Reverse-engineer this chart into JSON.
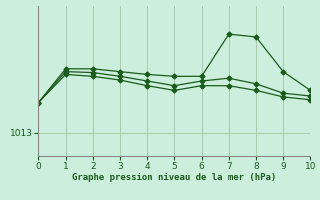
{
  "x": [
    0,
    1,
    2,
    3,
    4,
    5,
    6,
    7,
    8,
    9,
    10
  ],
  "line1": [
    1016.2,
    1019.8,
    1019.8,
    1019.5,
    1019.2,
    1019.0,
    1019.0,
    1023.5,
    1023.2,
    1019.5,
    1017.5
  ],
  "line2": [
    1016.2,
    1019.5,
    1019.4,
    1019.0,
    1018.5,
    1018.0,
    1018.5,
    1018.8,
    1018.2,
    1017.2,
    1016.9
  ],
  "line3": [
    1016.2,
    1019.2,
    1019.0,
    1018.6,
    1018.0,
    1017.5,
    1018.0,
    1018.0,
    1017.5,
    1016.8,
    1016.5
  ],
  "ytick_label": "1013",
  "ytick_value": 1013,
  "xlabel": "Graphe pression niveau de la mer (hPa)",
  "bg_color": "#cceedd",
  "line_color": "#1a5c1a",
  "grid_color": "#aacaaa",
  "ylim_min": 1010.5,
  "ylim_max": 1026.5,
  "xlim_min": 0,
  "xlim_max": 10
}
